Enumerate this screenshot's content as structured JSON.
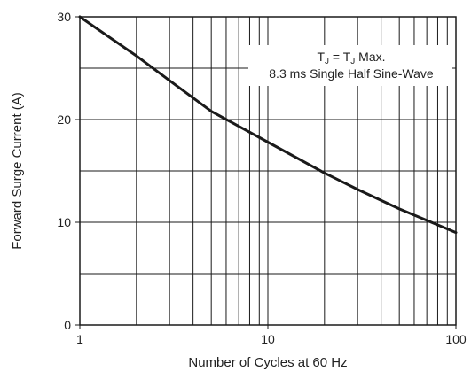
{
  "chart_data": {
    "type": "line",
    "x_scale": "log",
    "xlim": [
      1,
      100
    ],
    "ylim": [
      0,
      30
    ],
    "xlabel": "Number of Cycles at 60 Hz",
    "ylabel": "Forward Surge Current (A)",
    "x_ticks": [
      {
        "value": 1,
        "label": "1"
      },
      {
        "value": 10,
        "label": "10"
      },
      {
        "value": 100,
        "label": "100"
      }
    ],
    "y_ticks": [
      {
        "value": 0,
        "label": "0"
      },
      {
        "value": 10,
        "label": "10"
      },
      {
        "value": 20,
        "label": "20"
      },
      {
        "value": 30,
        "label": "30"
      }
    ],
    "grid": true,
    "annotation": {
      "line1_prefix": "T",
      "line1_sub1": "J",
      "line1_mid": " = T",
      "line1_sub2": "J",
      "line1_suffix": " Max.",
      "line2": "8.3 ms Single Half Sine-Wave"
    },
    "series": [
      {
        "x": [
          1,
          2,
          3,
          5,
          10,
          20,
          30,
          50,
          100
        ],
        "y": [
          30,
          26.2,
          23.8,
          20.8,
          17.8,
          14.8,
          13.2,
          11.3,
          9
        ]
      }
    ]
  }
}
